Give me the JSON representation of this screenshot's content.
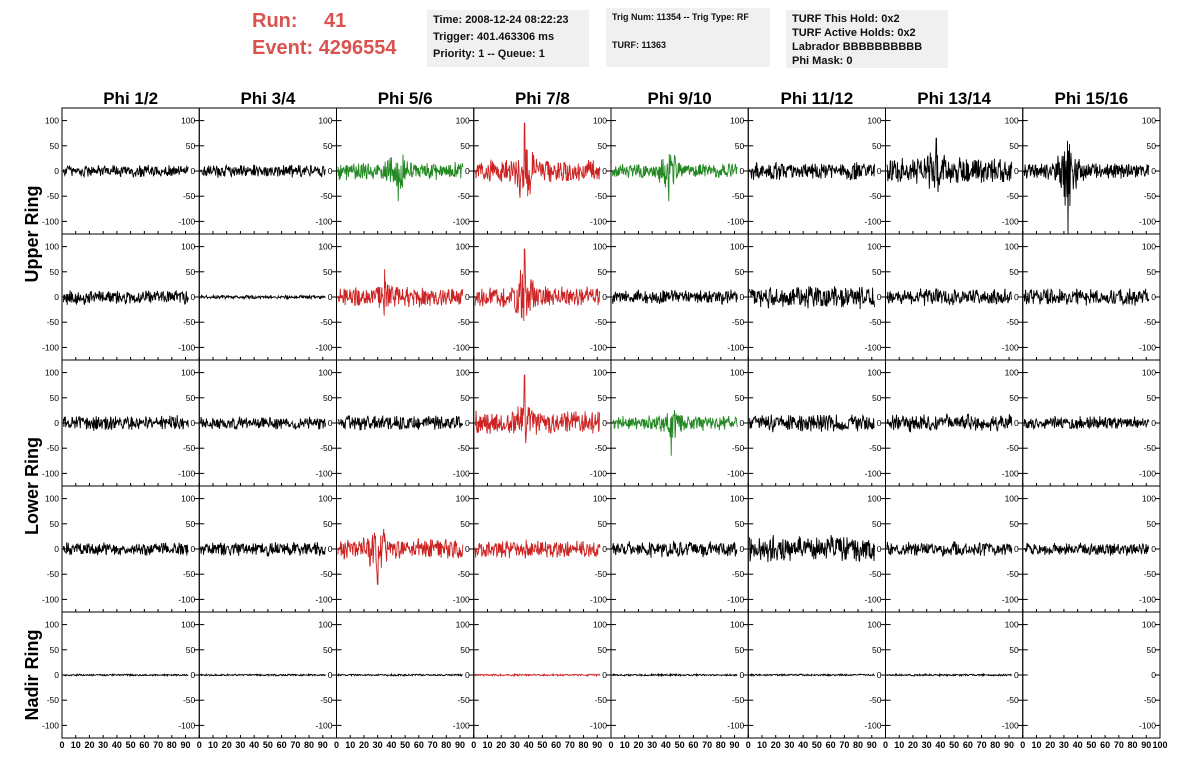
{
  "header": {
    "run_label": "Run:",
    "run_value": "41",
    "event_label": "Event:",
    "event_value": "4296554"
  },
  "info_time": {
    "time": "Time: 2008-12-24 08:22:23",
    "trigger": "Trigger: 401.463306 ms",
    "priority": "Priority: 1 -- Queue: 1"
  },
  "info_trig": {
    "trig": "Trig Num: 11354 -- Trig Type: RF",
    "turf": "TURF: 11363"
  },
  "info_turf": {
    "hold": "TURF This Hold: 0x2",
    "active": "TURF Active Holds: 0x2",
    "labrador": "Labrador BBBBBBBBBB",
    "phimask": "Phi Mask: 0"
  },
  "colors": {
    "normal": "#000000",
    "triggered_red": "#cc2222",
    "triggered_green": "#228822",
    "title_red": "#d9534f"
  },
  "chart_data": {
    "type": "line",
    "columns": [
      "Phi 1/2",
      "Phi 3/4",
      "Phi 5/6",
      "Phi 7/8",
      "Phi 9/10",
      "Phi 11/12",
      "Phi 13/14",
      "Phi 15/16"
    ],
    "rows": [
      "Upper Ring",
      "Lower Ring",
      "Nadir Ring"
    ],
    "xlim": [
      0,
      100
    ],
    "ylim": [
      -125,
      125
    ],
    "x_ticks": [
      0,
      10,
      20,
      30,
      40,
      50,
      60,
      70,
      80,
      90,
      100
    ],
    "y_ticks": [
      -100,
      -50,
      0,
      50,
      100
    ],
    "panels": [
      [
        {
          "color": "black",
          "amp": 14,
          "spike": null
        },
        {
          "color": "black",
          "amp": 14,
          "spike": null
        },
        {
          "color": "green",
          "amp": 20,
          "spike": {
            "x": 45,
            "y": -60
          }
        },
        {
          "color": "red",
          "amp": 25,
          "spike": {
            "x": 37,
            "y": 95
          }
        },
        {
          "color": "green",
          "amp": 16,
          "spike": {
            "x": 42,
            "y": -60
          }
        },
        {
          "color": "black",
          "amp": 20,
          "spike": null
        },
        {
          "color": "black",
          "amp": 30,
          "spike": {
            "x": 37,
            "y": 65
          }
        },
        {
          "color": "black",
          "amp": 18,
          "spike": {
            "x": 33,
            "y": -130
          }
        }
      ],
      [
        {
          "color": "black",
          "amp": 16,
          "spike": null
        },
        {
          "color": "black",
          "amp": 4,
          "spike": null
        },
        {
          "color": "red",
          "amp": 22,
          "spike": {
            "x": 35,
            "y": 55
          }
        },
        {
          "color": "red",
          "amp": 22,
          "spike": {
            "x": 37,
            "y": 95
          }
        },
        {
          "color": "black",
          "amp": 16,
          "spike": null
        },
        {
          "color": "black",
          "amp": 26,
          "spike": null
        },
        {
          "color": "black",
          "amp": 18,
          "spike": null
        },
        {
          "color": "black",
          "amp": 18,
          "spike": null
        }
      ],
      [
        {
          "color": "black",
          "amp": 16,
          "spike": null
        },
        {
          "color": "black",
          "amp": 14,
          "spike": null
        },
        {
          "color": "black",
          "amp": 16,
          "spike": null
        },
        {
          "color": "red",
          "amp": 26,
          "spike": {
            "x": 37,
            "y": 95
          }
        },
        {
          "color": "green",
          "amp": 16,
          "spike": {
            "x": 44,
            "y": -65
          }
        },
        {
          "color": "black",
          "amp": 20,
          "spike": null
        },
        {
          "color": "black",
          "amp": 20,
          "spike": null
        },
        {
          "color": "black",
          "amp": 14,
          "spike": null
        }
      ],
      [
        {
          "color": "black",
          "amp": 14,
          "spike": null
        },
        {
          "color": "black",
          "amp": 16,
          "spike": null
        },
        {
          "color": "red",
          "amp": 22,
          "spike": {
            "x": 30,
            "y": -70
          }
        },
        {
          "color": "red",
          "amp": 20,
          "spike": null
        },
        {
          "color": "black",
          "amp": 18,
          "spike": null
        },
        {
          "color": "black",
          "amp": 28,
          "spike": null
        },
        {
          "color": "black",
          "amp": 16,
          "spike": null
        },
        {
          "color": "black",
          "amp": 14,
          "spike": null
        }
      ],
      [
        {
          "color": "black",
          "amp": 2,
          "spike": null
        },
        {
          "color": "black",
          "amp": 2,
          "spike": null
        },
        {
          "color": "black",
          "amp": 2,
          "spike": null
        },
        {
          "color": "red",
          "amp": 2,
          "spike": null
        },
        {
          "color": "black",
          "amp": 2,
          "spike": null
        },
        {
          "color": "black",
          "amp": 2,
          "spike": null
        },
        {
          "color": "black",
          "amp": 2,
          "spike": null
        },
        null
      ]
    ]
  }
}
